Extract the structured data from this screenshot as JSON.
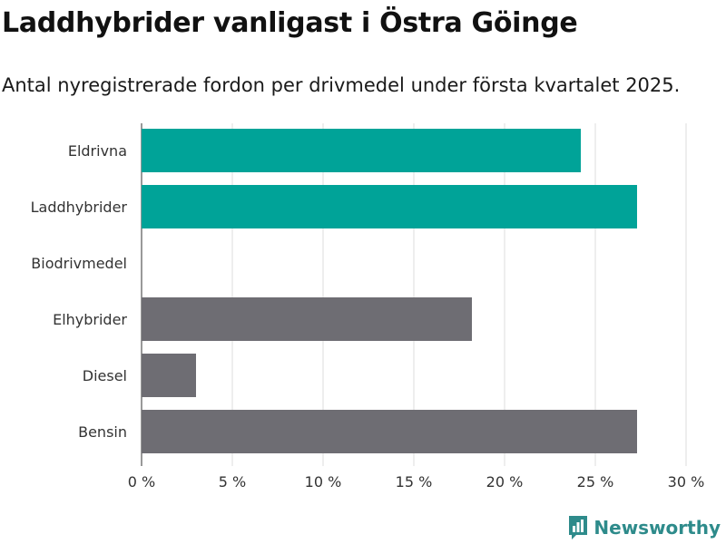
{
  "title": "Laddhybrider vanligast i Östra Göinge",
  "subtitle": "Antal nyregistrerade fordon per drivmedel under första kvartalet 2025.",
  "logo": {
    "text": "Newsworthy",
    "icon": "newsworthy-logo-icon"
  },
  "colors": {
    "highlight": "#00a398",
    "default": "#6e6d73",
    "grid": "#dddddd"
  },
  "chart_data": {
    "type": "bar",
    "orientation": "horizontal",
    "categories": [
      "Eldrivna",
      "Laddhybrider",
      "Biodrivmedel",
      "Elhybrider",
      "Diesel",
      "Bensin"
    ],
    "values": [
      24.2,
      27.3,
      0,
      18.2,
      3.0,
      27.3
    ],
    "highlight": [
      true,
      true,
      false,
      false,
      false,
      false
    ],
    "xlim": [
      0,
      30
    ],
    "xticks": [
      0,
      5,
      10,
      15,
      20,
      25,
      30
    ],
    "xtick_labels": [
      "0 %",
      "5 %",
      "10 %",
      "15 %",
      "20 %",
      "25 %",
      "30 %"
    ],
    "grid": true
  }
}
